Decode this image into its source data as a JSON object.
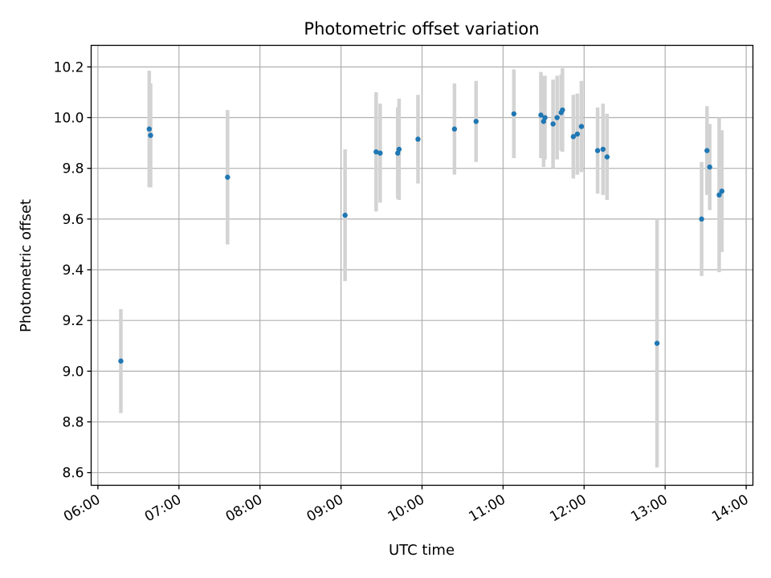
{
  "chart_data": {
    "type": "scatter",
    "title": "Photometric offset variation",
    "xlabel": "UTC time",
    "ylabel": "Photometric offset",
    "xlim": [
      "05:55",
      "14:05"
    ],
    "ylim": [
      8.55,
      10.285
    ],
    "x_ticks": [
      "06:00",
      "07:00",
      "08:00",
      "09:00",
      "10:00",
      "11:00",
      "12:00",
      "13:00",
      "14:00"
    ],
    "y_ticks": [
      "8.6",
      "8.8",
      "9.0",
      "9.2",
      "9.4",
      "9.6",
      "9.8",
      "10.0",
      "10.2"
    ],
    "grid": true,
    "marker_color": "#1f77b4",
    "errorbar_color": "#d3d3d3",
    "points": [
      {
        "time": "06:17",
        "y": 9.04,
        "err": 0.205
      },
      {
        "time": "06:38",
        "y": 9.955,
        "err": 0.23
      },
      {
        "time": "06:39",
        "y": 9.93,
        "err": 0.205
      },
      {
        "time": "07:36",
        "y": 9.765,
        "err": 0.265
      },
      {
        "time": "09:03",
        "y": 9.615,
        "err": 0.26
      },
      {
        "time": "09:26",
        "y": 9.865,
        "err": 0.235
      },
      {
        "time": "09:29",
        "y": 9.86,
        "err": 0.195
      },
      {
        "time": "09:42",
        "y": 9.86,
        "err": 0.18
      },
      {
        "time": "09:43",
        "y": 9.875,
        "err": 0.2
      },
      {
        "time": "09:57",
        "y": 9.915,
        "err": 0.175
      },
      {
        "time": "10:24",
        "y": 9.955,
        "err": 0.18
      },
      {
        "time": "10:40",
        "y": 9.985,
        "err": 0.16
      },
      {
        "time": "11:08",
        "y": 10.015,
        "err": 0.175
      },
      {
        "time": "11:28",
        "y": 10.01,
        "err": 0.17
      },
      {
        "time": "11:30",
        "y": 9.985,
        "err": 0.18
      },
      {
        "time": "11:31",
        "y": 10.0,
        "err": 0.165
      },
      {
        "time": "11:37",
        "y": 9.975,
        "err": 0.175
      },
      {
        "time": "11:40",
        "y": 10.0,
        "err": 0.165
      },
      {
        "time": "11:43",
        "y": 10.02,
        "err": 0.15
      },
      {
        "time": "11:44",
        "y": 10.03,
        "err": 0.165
      },
      {
        "time": "11:52",
        "y": 9.925,
        "err": 0.165
      },
      {
        "time": "11:55",
        "y": 9.935,
        "err": 0.16
      },
      {
        "time": "11:58",
        "y": 9.965,
        "err": 0.18
      },
      {
        "time": "12:10",
        "y": 9.87,
        "err": 0.17
      },
      {
        "time": "12:14",
        "y": 9.875,
        "err": 0.18
      },
      {
        "time": "12:17",
        "y": 9.845,
        "err": 0.17
      },
      {
        "time": "12:54",
        "y": 9.11,
        "err": 0.49
      },
      {
        "time": "13:27",
        "y": 9.6,
        "err": 0.225
      },
      {
        "time": "13:31",
        "y": 9.87,
        "err": 0.175
      },
      {
        "time": "13:33",
        "y": 9.805,
        "err": 0.17
      },
      {
        "time": "13:40",
        "y": 9.695,
        "err": 0.305
      },
      {
        "time": "13:42",
        "y": 9.71,
        "err": 0.24
      }
    ]
  }
}
